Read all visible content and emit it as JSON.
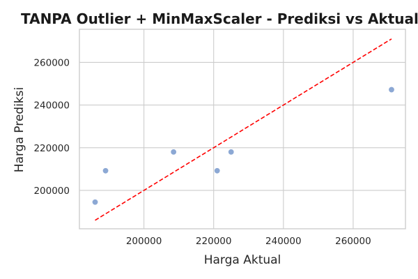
{
  "chart_data": {
    "type": "scatter",
    "title": "TANPA Outlier + MinMaxScaler - Prediksi vs Aktual",
    "xlabel": "Harga Aktual",
    "ylabel": "Harga Prediksi",
    "xlim": [
      181500,
      275000
    ],
    "ylim": [
      182000,
      275500
    ],
    "xticks": [
      200000,
      220000,
      240000,
      260000
    ],
    "yticks": [
      200000,
      220000,
      240000,
      260000
    ],
    "grid": true,
    "points": [
      {
        "x": 186000,
        "y": 194500
      },
      {
        "x": 189000,
        "y": 209200
      },
      {
        "x": 208500,
        "y": 218000
      },
      {
        "x": 221000,
        "y": 209200
      },
      {
        "x": 225000,
        "y": 218000
      },
      {
        "x": 271000,
        "y": 247200
      }
    ],
    "reference_line": {
      "from": [
        186000,
        186000
      ],
      "to": [
        271000,
        271000
      ],
      "style": "dashed"
    },
    "colors": {
      "points": "#7f9fcf",
      "reference_line": "#ff0000",
      "grid": "#cccccc"
    }
  }
}
